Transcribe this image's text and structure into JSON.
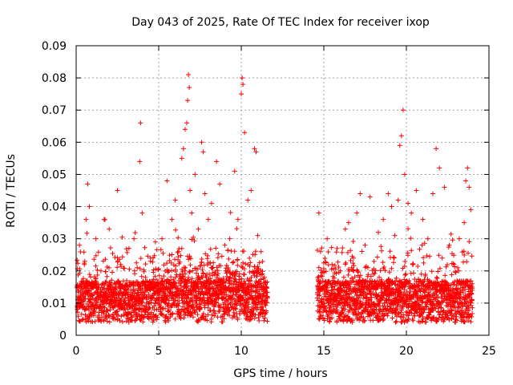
{
  "chart_data": {
    "type": "scatter",
    "title": "Day 043 of 2025, Rate Of TEC Index for receiver ixop",
    "xlabel": "GPS time / hours",
    "ylabel": "ROTI / TECUs",
    "xlim": [
      0,
      25
    ],
    "ylim": [
      0,
      0.09
    ],
    "x_ticks": [
      "0",
      "5",
      "10",
      "15",
      "20",
      "25"
    ],
    "y_ticks": [
      "0",
      "0.01",
      "0.02",
      "0.03",
      "0.04",
      "0.05",
      "0.06",
      "0.07",
      "0.08",
      "0.09"
    ],
    "grid": true,
    "marker": "+",
    "color": "#ff0000",
    "data_gap_hours": [
      11.6,
      14.6
    ],
    "series": [
      {
        "points": [
          [
            0.1,
            0.012
          ],
          [
            0.2,
            0.028
          ],
          [
            0.3,
            0.009
          ],
          [
            0.5,
            0.022
          ],
          [
            0.6,
            0.036
          ],
          [
            0.7,
            0.047
          ],
          [
            0.8,
            0.04
          ],
          [
            1.0,
            0.015
          ],
          [
            1.2,
            0.03
          ],
          [
            1.5,
            0.02
          ],
          [
            1.7,
            0.036
          ],
          [
            2.0,
            0.033
          ],
          [
            2.2,
            0.011
          ],
          [
            2.5,
            0.045
          ],
          [
            2.7,
            0.022
          ],
          [
            3.0,
            0.01
          ],
          [
            3.2,
            0.027
          ],
          [
            3.5,
            0.03
          ],
          [
            3.7,
            0.021
          ],
          [
            3.85,
            0.054
          ],
          [
            3.9,
            0.066
          ],
          [
            4.0,
            0.038
          ],
          [
            4.2,
            0.018
          ],
          [
            4.5,
            0.024
          ],
          [
            4.8,
            0.029
          ],
          [
            5.0,
            0.016
          ],
          [
            5.2,
            0.03
          ],
          [
            5.5,
            0.048
          ],
          [
            5.8,
            0.036
          ],
          [
            6.0,
            0.042
          ],
          [
            6.2,
            0.026
          ],
          [
            6.4,
            0.055
          ],
          [
            6.5,
            0.058
          ],
          [
            6.6,
            0.064
          ],
          [
            6.7,
            0.066
          ],
          [
            6.75,
            0.073
          ],
          [
            6.8,
            0.081
          ],
          [
            6.85,
            0.077
          ],
          [
            6.9,
            0.045
          ],
          [
            7.0,
            0.038
          ],
          [
            7.2,
            0.05
          ],
          [
            7.4,
            0.033
          ],
          [
            7.6,
            0.06
          ],
          [
            7.7,
            0.057
          ],
          [
            7.8,
            0.044
          ],
          [
            8.0,
            0.036
          ],
          [
            8.2,
            0.041
          ],
          [
            8.5,
            0.054
          ],
          [
            8.7,
            0.047
          ],
          [
            9.0,
            0.028
          ],
          [
            9.3,
            0.03
          ],
          [
            9.6,
            0.051
          ],
          [
            9.8,
            0.036
          ],
          [
            10.0,
            0.075
          ],
          [
            10.05,
            0.08
          ],
          [
            10.1,
            0.078
          ],
          [
            10.2,
            0.063
          ],
          [
            10.4,
            0.042
          ],
          [
            10.6,
            0.045
          ],
          [
            10.8,
            0.058
          ],
          [
            10.9,
            0.057
          ],
          [
            11.0,
            0.031
          ],
          [
            11.2,
            0.026
          ],
          [
            11.4,
            0.018
          ],
          [
            14.7,
            0.038
          ],
          [
            14.8,
            0.026
          ],
          [
            15.0,
            0.014
          ],
          [
            15.2,
            0.03
          ],
          [
            15.5,
            0.022
          ],
          [
            15.8,
            0.027
          ],
          [
            16.0,
            0.02
          ],
          [
            16.3,
            0.033
          ],
          [
            16.5,
            0.035
          ],
          [
            16.8,
            0.024
          ],
          [
            17.0,
            0.038
          ],
          [
            17.2,
            0.044
          ],
          [
            17.5,
            0.028
          ],
          [
            17.8,
            0.043
          ],
          [
            18.0,
            0.019
          ],
          [
            18.3,
            0.032
          ],
          [
            18.6,
            0.036
          ],
          [
            18.9,
            0.044
          ],
          [
            19.1,
            0.04
          ],
          [
            19.3,
            0.031
          ],
          [
            19.5,
            0.042
          ],
          [
            19.6,
            0.059
          ],
          [
            19.7,
            0.062
          ],
          [
            19.8,
            0.07
          ],
          [
            19.9,
            0.05
          ],
          [
            20.1,
            0.041
          ],
          [
            20.3,
            0.038
          ],
          [
            20.6,
            0.045
          ],
          [
            21.0,
            0.036
          ],
          [
            21.3,
            0.03
          ],
          [
            21.6,
            0.044
          ],
          [
            21.8,
            0.058
          ],
          [
            22.0,
            0.052
          ],
          [
            22.3,
            0.046
          ],
          [
            22.6,
            0.028
          ],
          [
            22.9,
            0.022
          ],
          [
            23.2,
            0.03
          ],
          [
            23.5,
            0.035
          ],
          [
            23.6,
            0.048
          ],
          [
            23.7,
            0.052
          ],
          [
            23.8,
            0.046
          ],
          [
            23.9,
            0.039
          ],
          [
            24.0,
            0.014
          ]
        ]
      }
    ]
  }
}
